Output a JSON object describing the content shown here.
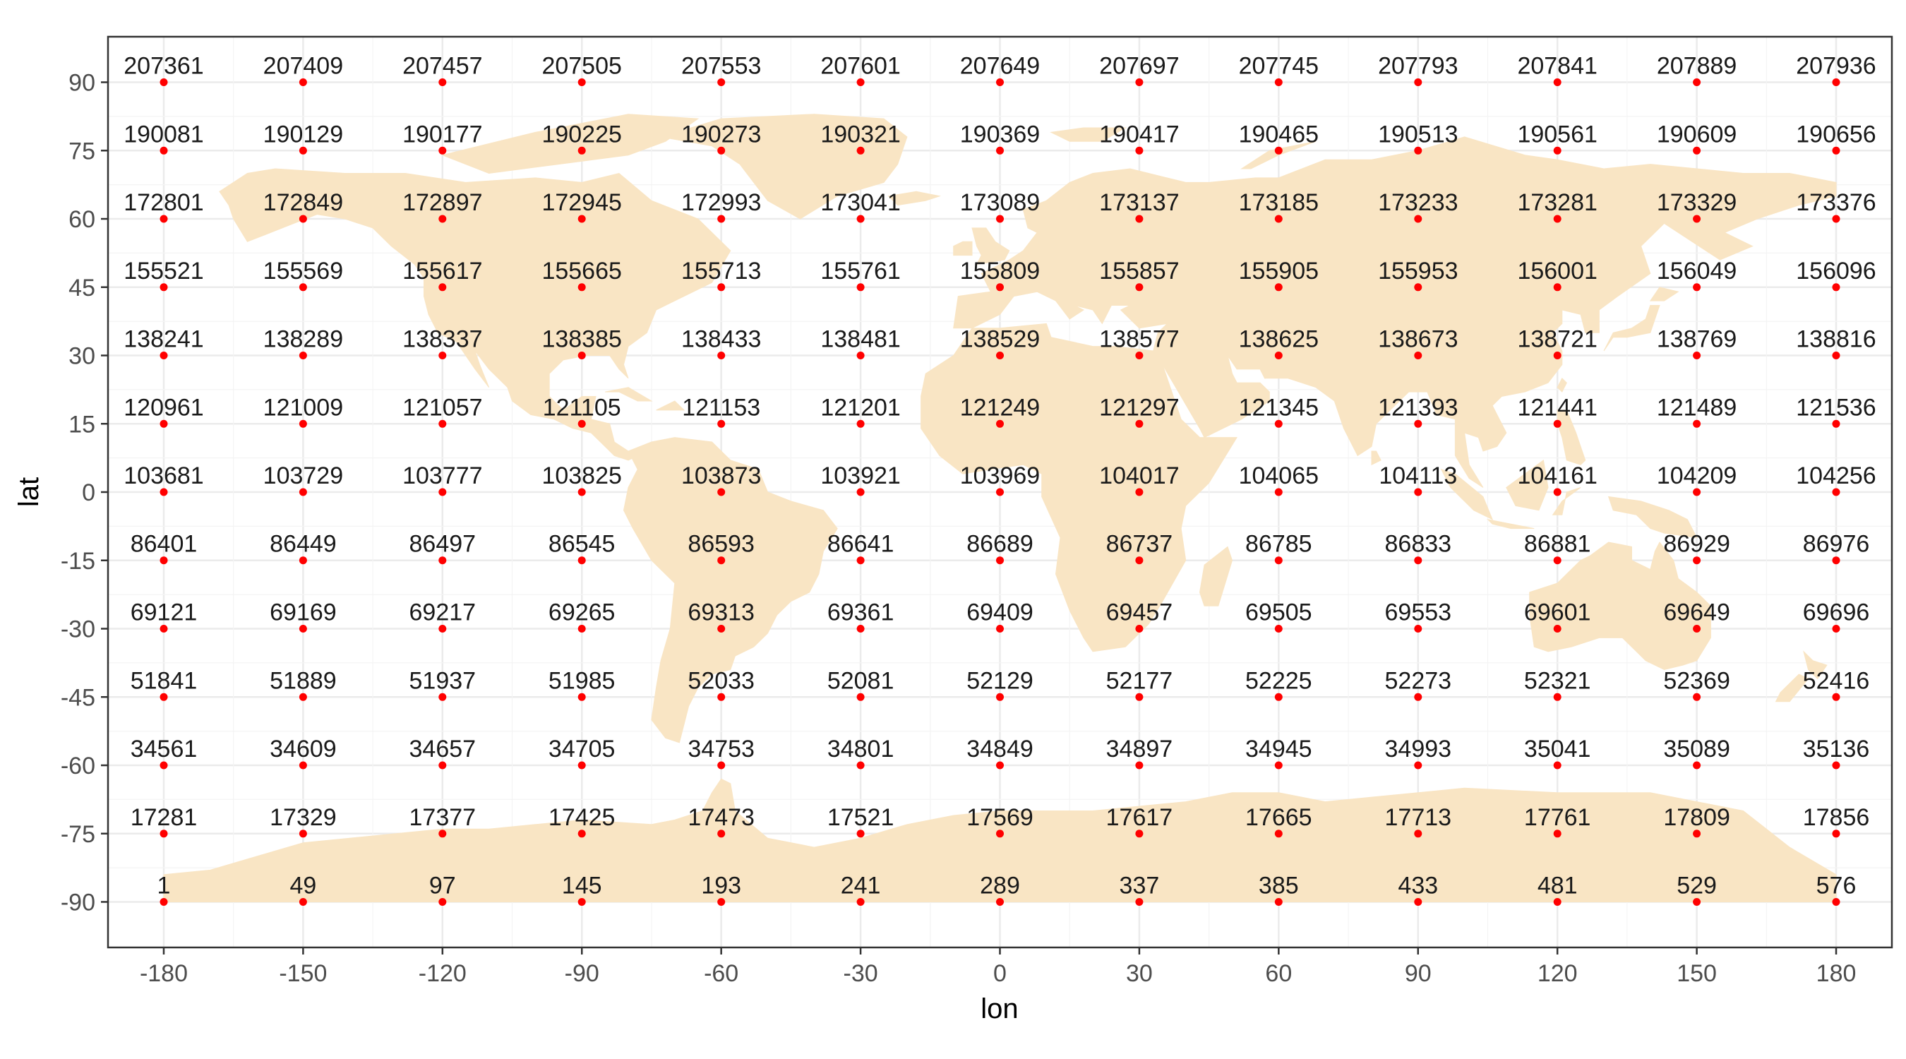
{
  "chart_data": {
    "type": "scatter",
    "title": "",
    "xlabel": "lon",
    "ylabel": "lat",
    "xlim": [
      -192,
      192
    ],
    "ylim": [
      -100,
      100
    ],
    "x_ticks": [
      -180,
      -150,
      -120,
      -90,
      -60,
      -30,
      0,
      30,
      60,
      90,
      120,
      150,
      180
    ],
    "y_ticks": [
      -90,
      -75,
      -60,
      -45,
      -30,
      -15,
      0,
      15,
      30,
      45,
      60,
      75,
      90
    ],
    "grid": true,
    "background_layer": "world land map",
    "colors": {
      "land": "#f9e5c4",
      "point": "#ff0000",
      "grid": "#ebebeb",
      "panel_border": "#333333"
    },
    "x": [
      -180,
      -150,
      -120,
      -90,
      -60,
      -30,
      0,
      30,
      60,
      90,
      120,
      150,
      180
    ],
    "y": [
      -90,
      -75,
      -60,
      -45,
      -30,
      -15,
      0,
      15,
      30,
      45,
      60,
      75,
      90
    ],
    "labels": [
      [
        1,
        49,
        97,
        145,
        193,
        241,
        289,
        337,
        385,
        433,
        481,
        529,
        576
      ],
      [
        17281,
        17329,
        17377,
        17425,
        17473,
        17521,
        17569,
        17617,
        17665,
        17713,
        17761,
        17809,
        17856
      ],
      [
        34561,
        34609,
        34657,
        34705,
        34753,
        34801,
        34849,
        34897,
        34945,
        34993,
        35041,
        35089,
        35136
      ],
      [
        51841,
        51889,
        51937,
        51985,
        52033,
        52081,
        52129,
        52177,
        52225,
        52273,
        52321,
        52369,
        52416
      ],
      [
        69121,
        69169,
        69217,
        69265,
        69313,
        69361,
        69409,
        69457,
        69505,
        69553,
        69601,
        69649,
        69696
      ],
      [
        86401,
        86449,
        86497,
        86545,
        86593,
        86641,
        86689,
        86737,
        86785,
        86833,
        86881,
        86929,
        86976
      ],
      [
        103681,
        103729,
        103777,
        103825,
        103873,
        103921,
        103969,
        104017,
        104065,
        104113,
        104161,
        104209,
        104256
      ],
      [
        120961,
        121009,
        121057,
        121105,
        121153,
        121201,
        121249,
        121297,
        121345,
        121393,
        121441,
        121489,
        121536
      ],
      [
        138241,
        138289,
        138337,
        138385,
        138433,
        138481,
        138529,
        138577,
        138625,
        138673,
        138721,
        138769,
        138816
      ],
      [
        155521,
        155569,
        155617,
        155665,
        155713,
        155761,
        155809,
        155857,
        155905,
        155953,
        156001,
        156049,
        156096
      ],
      [
        172801,
        172849,
        172897,
        172945,
        172993,
        173041,
        173089,
        173137,
        173185,
        173233,
        173281,
        173329,
        173376
      ],
      [
        190081,
        190129,
        190177,
        190225,
        190273,
        190321,
        190369,
        190417,
        190465,
        190513,
        190561,
        190609,
        190656
      ],
      [
        207361,
        207409,
        207457,
        207505,
        207553,
        207601,
        207649,
        207697,
        207745,
        207793,
        207841,
        207889,
        207936
      ]
    ]
  }
}
